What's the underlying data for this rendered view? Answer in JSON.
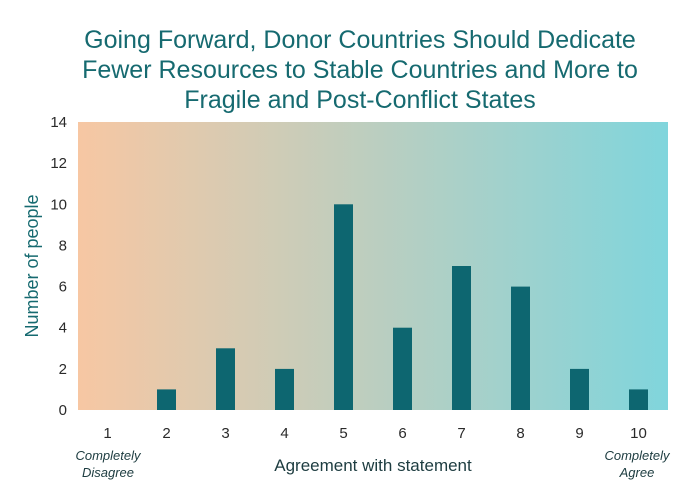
{
  "chart_data": {
    "type": "bar",
    "title": [
      "Going Forward, Donor Countries Should Dedicate",
      "Fewer Resources to Stable Countries and More to",
      "Fragile and Post-Conflict States"
    ],
    "xlabel": "Agreement with statement",
    "ylabel": "Number of people",
    "categories": [
      "1",
      "2",
      "3",
      "4",
      "5",
      "6",
      "7",
      "8",
      "9",
      "10"
    ],
    "values": [
      0,
      1,
      3,
      2,
      10,
      4,
      7,
      6,
      2,
      1
    ],
    "ylim": [
      0,
      14
    ],
    "yticks": [
      "0",
      "2",
      "4",
      "6",
      "8",
      "10",
      "12",
      "14"
    ],
    "end_labels": {
      "left": [
        "Completely",
        "Disagree"
      ],
      "right": [
        "Completely",
        "Agree"
      ]
    },
    "grid": false,
    "legend": "none",
    "colors": {
      "bar": "#0d6670",
      "title": "#166a70",
      "background_left": "#f7c7a3",
      "background_right": "#80d5dc"
    }
  }
}
